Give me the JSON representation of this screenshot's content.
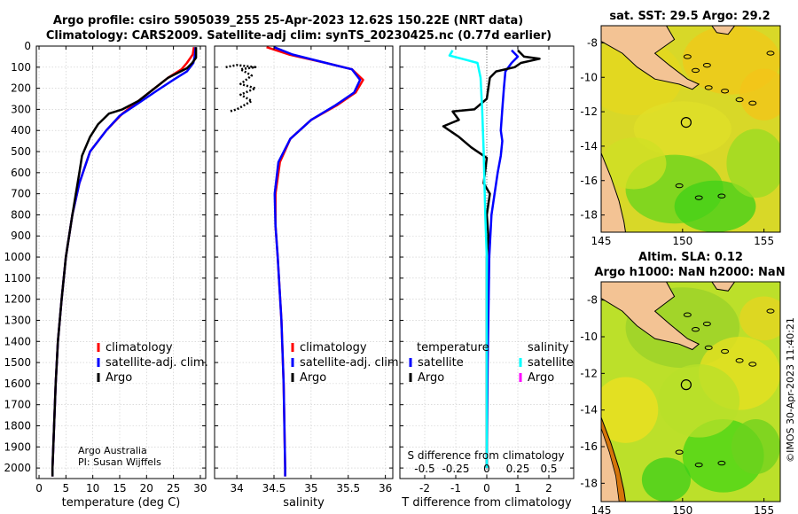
{
  "title_line1": "Argo profile: csiro 5905039_255 25-Apr-2023 12.62S 150.22E (NRT data)",
  "title_line2": "Climatology: CARS2009. Satellite-adj clim: synTS_20230425.nc (0.77d earlier)",
  "colors": {
    "climatology": "#ff0000",
    "satellite": "#0000ff",
    "argo": "#000000",
    "sat_salinity": "#00ffff",
    "argo_salinity": "#ff00ff"
  },
  "chart_data": [
    {
      "type": "line",
      "name": "temperature",
      "xlabel": "temperature (deg C)",
      "xlim": [
        -0.5,
        31
      ],
      "ylim": [
        0,
        2050
      ],
      "xticks": [
        0,
        5,
        10,
        15,
        20,
        25,
        30
      ],
      "yticks": [
        0,
        100,
        200,
        300,
        400,
        500,
        600,
        700,
        800,
        900,
        1000,
        1100,
        1200,
        1300,
        1400,
        1500,
        1600,
        1700,
        1800,
        1900,
        2000
      ],
      "series": [
        {
          "name": "climatology",
          "color": "#ff0000",
          "points": [
            [
              28.8,
              5
            ],
            [
              28.6,
              40
            ],
            [
              27.5,
              80
            ],
            [
              26.5,
              110
            ],
            [
              24,
              150
            ],
            [
              21.5,
              200
            ],
            [
              18.5,
              260
            ],
            [
              15.5,
              320
            ],
            [
              12.5,
              400
            ],
            [
              9.5,
              500
            ],
            [
              7.5,
              650
            ],
            [
              6.2,
              800
            ],
            [
              5,
              1000
            ],
            [
              4.2,
              1200
            ],
            [
              3.5,
              1400
            ],
            [
              3.1,
              1600
            ],
            [
              2.8,
              1800
            ],
            [
              2.5,
              2000
            ],
            [
              2.5,
              2040
            ]
          ]
        },
        {
          "name": "satellite-adj. clim.",
          "color": "#0000ff",
          "points": [
            [
              29.1,
              5
            ],
            [
              29,
              40
            ],
            [
              28.7,
              80
            ],
            [
              27.5,
              120
            ],
            [
              25,
              160
            ],
            [
              22,
              210
            ],
            [
              18.5,
              270
            ],
            [
              15,
              330
            ],
            [
              12.5,
              400
            ],
            [
              9.5,
              500
            ],
            [
              7.5,
              650
            ],
            [
              6.2,
              800
            ],
            [
              5,
              1000
            ],
            [
              4.2,
              1200
            ],
            [
              3.5,
              1400
            ],
            [
              3.1,
              1600
            ],
            [
              2.8,
              1800
            ],
            [
              2.5,
              2000
            ],
            [
              2.5,
              2040
            ]
          ]
        },
        {
          "name": "Argo",
          "color": "#000000",
          "points": [
            [
              29.2,
              5
            ],
            [
              29.2,
              55
            ],
            [
              28.5,
              80
            ],
            [
              27.5,
              105
            ],
            [
              24,
              150
            ],
            [
              21.5,
              200
            ],
            [
              18.5,
              260
            ],
            [
              15.5,
              300
            ],
            [
              13,
              320
            ],
            [
              11,
              370
            ],
            [
              9.5,
              430
            ],
            [
              8,
              520
            ],
            [
              7.5,
              600
            ],
            [
              6.2,
              800
            ],
            [
              5,
              1000
            ],
            [
              4.2,
              1200
            ],
            [
              3.5,
              1400
            ],
            [
              3.1,
              1600
            ],
            [
              2.8,
              1800
            ],
            [
              2.5,
              2000
            ],
            [
              2.5,
              2040
            ]
          ]
        }
      ],
      "legend": [
        "climatology",
        "satellite-adj. clim.",
        "Argo"
      ],
      "annotation_line1": "Argo Australia",
      "annotation_line2": "PI: Susan Wijffels"
    },
    {
      "type": "line",
      "name": "salinity",
      "xlabel": "salinity",
      "xlim": [
        33.7,
        36.1
      ],
      "ylim": [
        0,
        2050
      ],
      "xticks": [
        34,
        34.5,
        35,
        35.5,
        36
      ],
      "series": [
        {
          "name": "climatology",
          "color": "#ff0000",
          "points": [
            [
              34.4,
              5
            ],
            [
              34.7,
              40
            ],
            [
              35.2,
              80
            ],
            [
              35.55,
              110
            ],
            [
              35.7,
              160
            ],
            [
              35.6,
              220
            ],
            [
              35.35,
              280
            ],
            [
              35.0,
              350
            ],
            [
              34.72,
              440
            ],
            [
              34.58,
              550
            ],
            [
              34.52,
              700
            ],
            [
              34.52,
              850
            ],
            [
              34.55,
              1000
            ],
            [
              34.6,
              1300
            ],
            [
              34.63,
              1600
            ],
            [
              34.65,
              2000
            ],
            [
              34.65,
              2040
            ]
          ]
        },
        {
          "name": "satellite-adj. clim.",
          "color": "#0000ff",
          "points": [
            [
              34.5,
              5
            ],
            [
              34.75,
              40
            ],
            [
              35.2,
              80
            ],
            [
              35.55,
              110
            ],
            [
              35.66,
              160
            ],
            [
              35.58,
              220
            ],
            [
              35.33,
              280
            ],
            [
              35.0,
              350
            ],
            [
              34.72,
              440
            ],
            [
              34.56,
              550
            ],
            [
              34.51,
              700
            ],
            [
              34.52,
              850
            ],
            [
              34.55,
              1000
            ],
            [
              34.6,
              1300
            ],
            [
              34.63,
              1600
            ],
            [
              34.65,
              2000
            ],
            [
              34.65,
              2040
            ]
          ]
        },
        {
          "name": "Argo",
          "color": "#000000",
          "points": [
            [
              33.85,
              100
            ],
            [
              34.0,
              90
            ],
            [
              34.25,
              100
            ],
            [
              34.05,
              110
            ],
            [
              34.2,
              140
            ],
            [
              34.05,
              180
            ],
            [
              34.25,
              200
            ],
            [
              34.05,
              230
            ],
            [
              34.2,
              260
            ],
            [
              34.0,
              300
            ],
            [
              33.9,
              310
            ]
          ]
        }
      ],
      "legend": [
        "climatology",
        "satellite-adj. clim.",
        "Argo"
      ]
    },
    {
      "type": "line",
      "name": "difference",
      "xlabel": "T difference from climatology",
      "xlabel_top": "S difference from climatology",
      "xlim": [
        -2.8,
        2.8
      ],
      "ylim": [
        0,
        2050
      ],
      "xticks_bottom": [
        -2,
        -1,
        0,
        1,
        2
      ],
      "xticks_top_labels": [
        "-0.5",
        "-0.25",
        "0",
        "0.25",
        "0.5"
      ],
      "series": [
        {
          "name": "temperature satellite",
          "color": "#0000ff",
          "points": [
            [
              0.8,
              20
            ],
            [
              1.0,
              50
            ],
            [
              0.8,
              80
            ],
            [
              0.6,
              120
            ],
            [
              0.55,
              200
            ],
            [
              0.5,
              300
            ],
            [
              0.45,
              400
            ],
            [
              0.5,
              450
            ],
            [
              0.45,
              520
            ],
            [
              0.35,
              600
            ],
            [
              0.25,
              700
            ],
            [
              0.15,
              800
            ],
            [
              0.08,
              1000
            ],
            [
              0.03,
              1500
            ],
            [
              0,
              2000
            ]
          ]
        },
        {
          "name": "temperature Argo",
          "color": "#000000",
          "points": [
            [
              1.0,
              20
            ],
            [
              1.2,
              50
            ],
            [
              1.7,
              60
            ],
            [
              1.1,
              80
            ],
            [
              0.9,
              100
            ],
            [
              0.3,
              120
            ],
            [
              0.1,
              150
            ],
            [
              0.0,
              250
            ],
            [
              -0.4,
              300
            ],
            [
              -1.1,
              310
            ],
            [
              -0.9,
              350
            ],
            [
              -1.4,
              380
            ],
            [
              -0.9,
              430
            ],
            [
              -0.5,
              480
            ],
            [
              0.0,
              530
            ],
            [
              -0.1,
              650
            ],
            [
              0.1,
              700
            ],
            [
              0.0,
              800
            ],
            [
              0.05,
              900
            ],
            [
              0.0,
              1000
            ],
            [
              0.0,
              1500
            ],
            [
              0.0,
              2000
            ]
          ]
        },
        {
          "name": "salinity satellite",
          "color": "#00ffff",
          "points": [
            [
              -1.1,
              20
            ],
            [
              -1.2,
              45
            ],
            [
              -0.8,
              60
            ],
            [
              -0.3,
              80
            ],
            [
              -0.2,
              150
            ],
            [
              -0.15,
              300
            ],
            [
              -0.1,
              500
            ],
            [
              -0.05,
              800
            ],
            [
              0,
              1000
            ],
            [
              0,
              1500
            ],
            [
              0,
              2000
            ]
          ]
        }
      ],
      "legend_temperature_title": "temperature",
      "legend_salinity_title": "salinity",
      "legend_temperature": [
        "satellite",
        "Argo"
      ],
      "legend_salinity": [
        "satellite",
        "Argo"
      ]
    },
    {
      "type": "heatmap",
      "name": "sst-map",
      "title": "sat. SST: 29.5 Argo: 29.2",
      "xlim": [
        145,
        156
      ],
      "ylim": [
        -19,
        -7
      ],
      "xticks": [
        145,
        150,
        155
      ],
      "yticks": [
        -8,
        -10,
        -12,
        -14,
        -16,
        -18
      ],
      "marker": {
        "lon": 150.22,
        "lat": -12.62
      }
    },
    {
      "type": "heatmap",
      "name": "sla-map",
      "title_line1": "Altim. SLA: 0.12",
      "title_line2": "Argo h1000: NaN h2000: NaN",
      "xlim": [
        145,
        156
      ],
      "ylim": [
        -19,
        -7
      ],
      "xticks": [
        145,
        150,
        155
      ],
      "yticks": [
        -8,
        -10,
        -12,
        -14,
        -16,
        -18
      ],
      "marker": {
        "lon": 150.22,
        "lat": -12.62
      }
    }
  ],
  "credit": "©IMOS 30-Apr-2023 11:40:21"
}
